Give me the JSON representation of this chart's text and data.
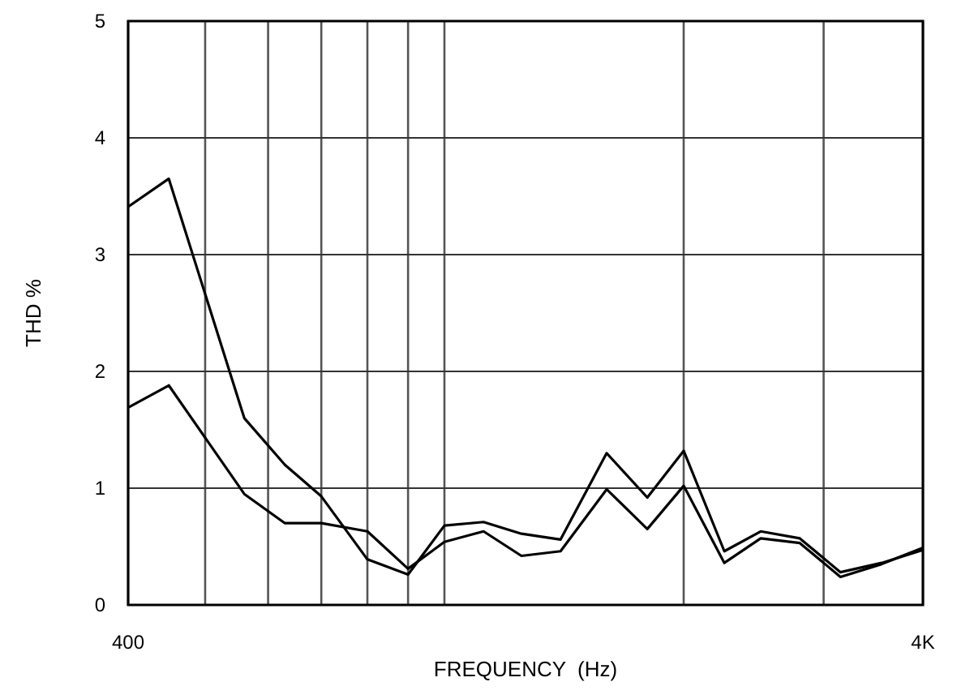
{
  "chart_data": {
    "type": "line",
    "xlabel": "FREQUENCY  (Hz)",
    "ylabel": "THD %",
    "x": [
      400,
      450,
      560,
      630,
      700,
      800,
      900,
      1000,
      1120,
      1250,
      1400,
      1600,
      1800,
      2000,
      2250,
      2500,
      2800,
      3150,
      3550,
      4000
    ],
    "series": [
      {
        "color": "#000000",
        "values": [
          3.41,
          3.65,
          1.6,
          1.2,
          0.93,
          0.39,
          0.26,
          0.68,
          0.71,
          0.61,
          0.56,
          1.3,
          0.92,
          1.32,
          0.46,
          0.63,
          0.57,
          0.28,
          0.36,
          0.47
        ]
      },
      {
        "color": "#000000",
        "values": [
          1.69,
          1.88,
          0.95,
          0.7,
          0.7,
          0.63,
          0.31,
          0.54,
          0.63,
          0.42,
          0.46,
          0.99,
          0.65,
          1.02,
          0.36,
          0.57,
          0.53,
          0.24,
          0.35,
          0.49
        ]
      }
    ],
    "log": "x",
    "xlim": [
      400,
      4000
    ],
    "ylim": [
      0,
      5
    ],
    "xticks": [
      400,
      {
        "value": 500,
        "label": null
      },
      {
        "value": 600,
        "label": null
      },
      {
        "value": 700,
        "label": null
      },
      {
        "value": 800,
        "label": null
      },
      {
        "value": 900,
        "label": null
      },
      {
        "value": 1000,
        "label": null
      },
      {
        "value": 2000,
        "label": null
      },
      {
        "value": 3000,
        "label": null
      },
      {
        "value": 4000,
        "label": "4K"
      }
    ],
    "yticks": [
      0,
      1,
      2,
      3,
      4,
      5
    ],
    "grid": true,
    "marker": "none",
    "line_style": "solid"
  }
}
